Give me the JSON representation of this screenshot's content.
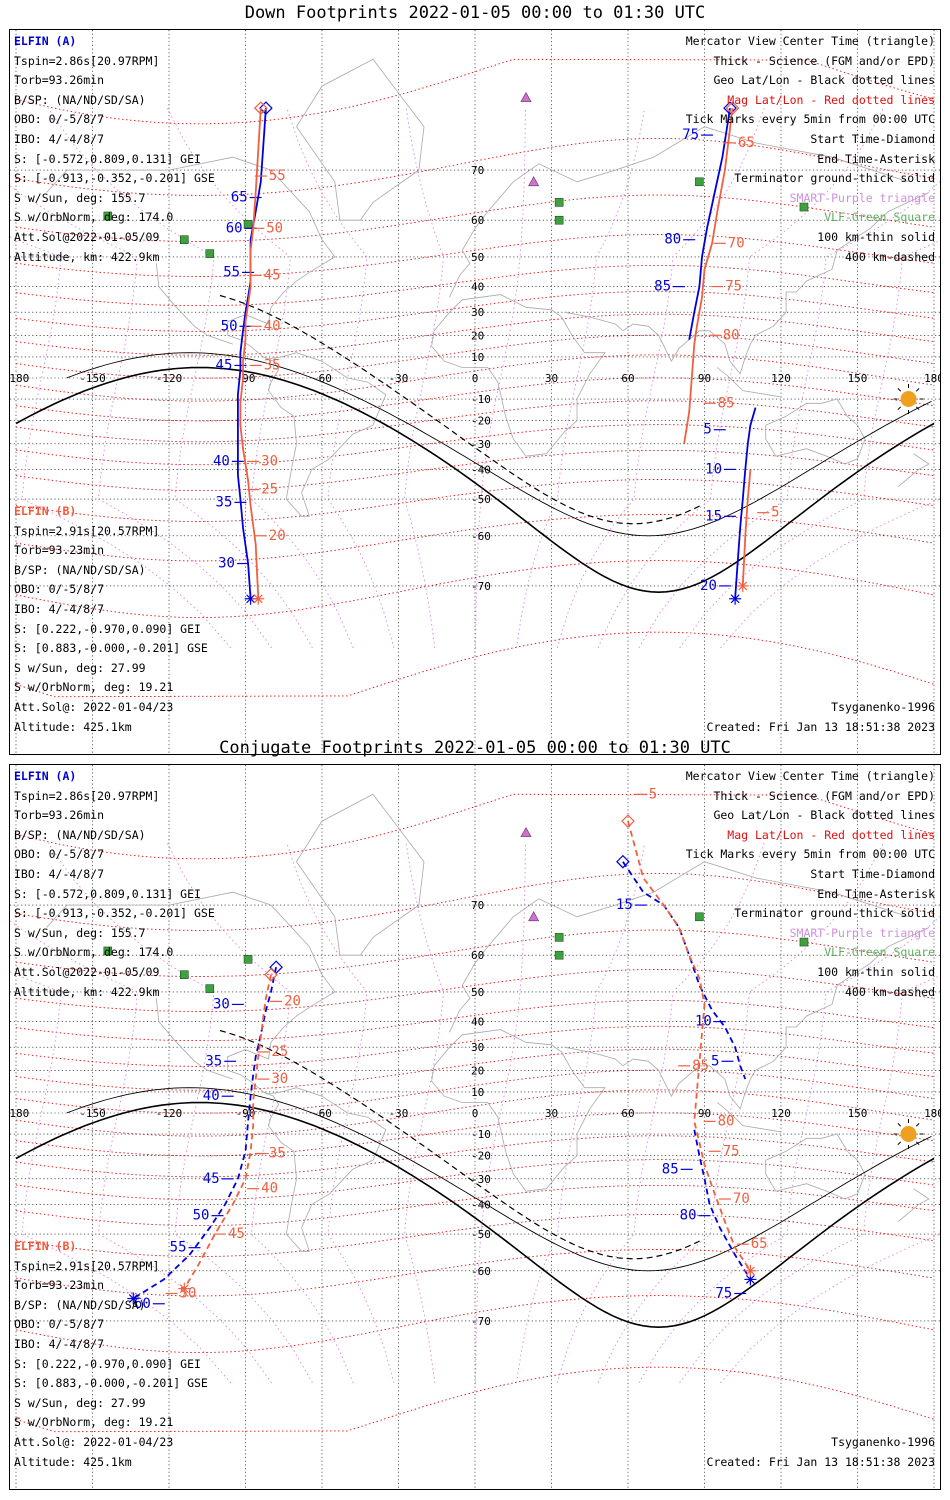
{
  "panels": [
    {
      "title": "Down Footprints 2022-01-05 00:00 to 01:30 UTC",
      "elfin_a": {
        "name": "ELFIN (A)",
        "lines": [
          "Tspin=2.86s[20.97RPM]",
          "Torb=93.26min",
          "B/SP: (NA/ND/SD/SA)",
          "OBO: 0/-5/8/7",
          "IBO: 4/-4/8/7",
          "S: [-0.572,0.809,0.131] GEI",
          "S: [-0.913,-0.352,-0.201] GSE",
          "S w/Sun, deg: 155.7",
          "S w/OrbNorm, deg: 174.0",
          "Att.Sol@2022-01-05/09",
          "Altitude, km: 422.9km"
        ]
      },
      "elfin_b": {
        "name": "ELFIN (B)",
        "lines": [
          "Tspin=2.91s[20.57RPM]",
          "Torb=93.23min",
          "B/SP: (NA/ND/SD/SA)",
          "OBO: 0/-5/8/7",
          "IBO: 4/-4/8/7",
          "S: [0.222,-0.970,0.090] GEI",
          "S: [0.883,-0.000,-0.201] GSE",
          "S w/Sun, deg: 27.99",
          "S w/OrbNorm, deg: 19.21",
          "Att.Sol@: 2022-01-04/23",
          "Altitude: 425.1km"
        ]
      },
      "legend": [
        "Mercator View Center Time (triangle)",
        "Thick - Science (FGM and/or EPD)",
        "Geo Lat/Lon - Black dotted lines",
        "Mag Lat/Lon - Red dotted lines",
        "Tick Marks every 5min from 00:00 UTC",
        "Start Time-Diamond",
        "End Time-Asterisk",
        "Terminator ground-thick solid",
        "SMART-Purple triangle",
        "VLF-Green Square",
        "100 km-thin solid",
        "400 km-dashed"
      ],
      "model": "Tsyganenko-1996",
      "created": "Created: Fri Jan 13 18:51:38 2023",
      "tracks": [
        {
          "sat": "A",
          "color": "#0000dd",
          "points": [
            [
              -82,
              78
            ],
            [
              -84,
              68
            ],
            [
              -86,
              62
            ],
            [
              -88,
              55
            ],
            [
              -88,
              48
            ],
            [
              -88,
              42
            ],
            [
              -89,
              36
            ],
            [
              -90,
              30
            ],
            [
              -91,
              22
            ],
            [
              -92,
              12
            ],
            [
              -92,
              4
            ],
            [
              -93,
              -8
            ],
            [
              -93,
              -22
            ],
            [
              -93,
              -34
            ],
            [
              -93,
              -42
            ],
            [
              -92,
              -50
            ],
            [
              -91,
              -58
            ],
            [
              -89,
              -66
            ],
            [
              -88,
              -72
            ]
          ],
          "labels": [
            {
              "t": "65",
              "lon": -86,
              "lat": 65
            },
            {
              "t": "60",
              "lon": -88,
              "lat": 58
            },
            {
              "t": "55",
              "lon": -89,
              "lat": 45
            },
            {
              "t": "50",
              "lon": -90,
              "lat": 24
            },
            {
              "t": "45",
              "lon": -92,
              "lat": 6
            },
            {
              "t": "40",
              "lon": -93,
              "lat": -37
            },
            {
              "t": "35",
              "lon": -92,
              "lat": -51
            },
            {
              "t": "30",
              "lon": -91,
              "lat": -66
            }
          ]
        },
        {
          "sat": "B",
          "color": "#f06040",
          "points": [
            [
              -84,
              78
            ],
            [
              -86,
              66
            ],
            [
              -87,
              58
            ],
            [
              -88,
              52
            ],
            [
              -88,
              46
            ],
            [
              -88,
              40
            ],
            [
              -89,
              33
            ],
            [
              -90,
              26
            ],
            [
              -90,
              18
            ],
            [
              -91,
              8
            ],
            [
              -91,
              0
            ],
            [
              -92,
              -12
            ],
            [
              -92,
              -22
            ],
            [
              -91,
              -32
            ],
            [
              -90,
              -38
            ],
            [
              -89,
              -44
            ],
            [
              -88,
              -52
            ],
            [
              -86,
              -62
            ],
            [
              -85,
              -72
            ]
          ],
          "labels": [
            {
              "t": "55",
              "lon": -84,
              "lat": 69
            },
            {
              "t": "50",
              "lon": -85,
              "lat": 58
            },
            {
              "t": "45",
              "lon": -86,
              "lat": 44
            },
            {
              "t": "40",
              "lon": -86,
              "lat": 24
            },
            {
              "t": "35",
              "lon": -86,
              "lat": 6
            },
            {
              "t": "30",
              "lon": -87,
              "lat": -37
            },
            {
              "t": "25",
              "lon": -87,
              "lat": -47
            },
            {
              "t": "20",
              "lon": -84,
              "lat": -60
            }
          ]
        },
        {
          "sat": "A",
          "color": "#0000dd",
          "points": [
            [
              100,
              78
            ],
            [
              97,
              72
            ],
            [
              94,
              66
            ],
            [
              91,
              58
            ],
            [
              89,
              50
            ],
            [
              88,
              40
            ],
            [
              86,
              30
            ],
            [
              84,
              18
            ],
            [
              110,
              -14
            ],
            [
              108,
              -22
            ],
            [
              107,
              -30
            ],
            [
              106,
              -40
            ],
            [
              105,
              -50
            ],
            [
              104,
              -58
            ],
            [
              103,
              -66
            ],
            [
              102,
              -72
            ]
          ],
          "labels": [
            {
              "t": "75",
              "lon": 91,
              "lat": 75
            },
            {
              "t": "80",
              "lon": 84,
              "lat": 55
            },
            {
              "t": "85",
              "lon": 80,
              "lat": 40
            },
            {
              "t": "5",
              "lon": 96,
              "lat": -24
            },
            {
              "t": "10",
              "lon": 100,
              "lat": -40
            },
            {
              "t": "15",
              "lon": 100,
              "lat": -55
            },
            {
              "t": "20",
              "lon": 98,
              "lat": -70
            }
          ]
        },
        {
          "sat": "B",
          "color": "#f06040",
          "points": [
            [
              101,
              78
            ],
            [
              98,
              70
            ],
            [
              95,
              62
            ],
            [
              93,
              54
            ],
            [
              90,
              46
            ],
            [
              89,
              36
            ],
            [
              87,
              24
            ],
            [
              86,
              16
            ],
            [
              85,
              0
            ],
            [
              84,
              -16
            ],
            [
              82,
              -30
            ],
            [
              108,
              -40
            ],
            [
              107,
              -50
            ],
            [
              106,
              -60
            ],
            [
              105,
              -70
            ]
          ],
          "labels": [
            {
              "t": "65",
              "lon": 100,
              "lat": 74
            },
            {
              "t": "70",
              "lon": 96,
              "lat": 54
            },
            {
              "t": "75",
              "lon": 95,
              "lat": 40
            },
            {
              "t": "80",
              "lon": 94,
              "lat": 20
            },
            {
              "t": "85",
              "lon": 92,
              "lat": -12
            },
            {
              "t": "5",
              "lon": 113,
              "lat": -54
            }
          ]
        }
      ]
    },
    {
      "title": "Conjugate Footprints 2022-01-05 00:00 to 01:30 UTC",
      "elfin_a": {
        "name": "ELFIN (A)",
        "lines": [
          "Tspin=2.86s[20.97RPM]",
          "Torb=93.26min",
          "B/SP: (NA/ND/SD/SA)",
          "OBO: 0/-5/8/7",
          "IBO: 4/-4/8/7",
          "S: [-0.572,0.809,0.131] GEI",
          "S: [-0.913,-0.352,-0.201] GSE",
          "S w/Sun, deg: 155.7",
          "S w/OrbNorm, deg: 174.0",
          "Att.Sol@2022-01-05/09",
          "Altitude, km: 422.9km"
        ]
      },
      "elfin_b": {
        "name": "ELFIN (B)",
        "lines": [
          "Tspin=2.91s[20.57RPM]",
          "Torb=93.23min",
          "B/SP: (NA/ND/SD/SA)",
          "OBO: 0/-5/8/7",
          "IBO: 4/-4/8/7",
          "S: [0.222,-0.970,0.090] GEI",
          "S: [0.883,-0.000,-0.201] GSE",
          "S w/Sun, deg: 27.99",
          "S w/OrbNorm, deg: 19.21",
          "Att.Sol@: 2022-01-04/23",
          "Altitude: 425.1km"
        ]
      },
      "legend": [
        "Mercator View Center Time (triangle)",
        "Thick - Science (FGM and/or EPD)",
        "Geo Lat/Lon - Black dotted lines",
        "Mag Lat/Lon - Red dotted lines",
        "Tick Marks every 5min from 00:00 UTC",
        "Start Time-Diamond",
        "End Time-Asterisk",
        "Terminator ground-thick solid",
        "SMART-Purple triangle",
        "VLF-Green Square",
        "100 km-thin solid",
        "400 km-dashed"
      ],
      "model": "Tsyganenko-1996",
      "created": "Created: Fri Jan 13 18:51:38 2023",
      "tracks": [
        {
          "sat": "A",
          "color": "#0000dd",
          "dashed": true,
          "points": [
            [
              -78,
              57
            ],
            [
              -80,
              50
            ],
            [
              -82,
              44
            ],
            [
              -84,
              35
            ],
            [
              -86,
              26
            ],
            [
              -87,
              18
            ],
            [
              -88,
              8
            ],
            [
              -89,
              -4
            ],
            [
              -90,
              -18
            ],
            [
              -93,
              -30
            ],
            [
              -98,
              -40
            ],
            [
              -104,
              -48
            ],
            [
              -112,
              -56
            ],
            [
              -122,
              -62
            ],
            [
              -134,
              -66
            ]
          ],
          "labels": [
            {
              "t": "30",
              "lon": -93,
              "lat": 46
            },
            {
              "t": "35",
              "lon": -96,
              "lat": 24
            },
            {
              "t": "40",
              "lon": -97,
              "lat": 8
            },
            {
              "t": "45",
              "lon": -97,
              "lat": -30
            },
            {
              "t": "50",
              "lon": -101,
              "lat": -44
            },
            {
              "t": "55",
              "lon": -110,
              "lat": -54
            },
            {
              "t": "60",
              "lon": -124,
              "lat": -67
            }
          ]
        },
        {
          "sat": "B",
          "color": "#f06040",
          "dashed": true,
          "points": [
            [
              -80,
              55
            ],
            [
              -82,
              48
            ],
            [
              -83,
              42
            ],
            [
              -84,
              34
            ],
            [
              -85,
              26
            ],
            [
              -86,
              16
            ],
            [
              -87,
              6
            ],
            [
              -87,
              -6
            ],
            [
              -88,
              -18
            ],
            [
              -90,
              -30
            ],
            [
              -95,
              -40
            ],
            [
              -102,
              -50
            ],
            [
              -108,
              -58
            ],
            [
              -114,
              -64
            ]
          ],
          "labels": [
            {
              "t": "20",
              "lon": -78,
              "lat": 47
            },
            {
              "t": "25",
              "lon": -83,
              "lat": 28
            },
            {
              "t": "30",
              "lon": -83,
              "lat": 16
            },
            {
              "t": "35",
              "lon": -84,
              "lat": -19
            },
            {
              "t": "40",
              "lon": -87,
              "lat": -34
            },
            {
              "t": "45",
              "lon": -100,
              "lat": -50
            },
            {
              "t": "50",
              "lon": -119,
              "lat": -65
            }
          ]
        },
        {
          "sat": "A",
          "color": "#0000dd",
          "dashed": true,
          "points": [
            [
              58,
              76
            ],
            [
              66,
              72
            ],
            [
              74,
              70
            ],
            [
              80,
              66
            ],
            [
              84,
              60
            ],
            [
              88,
              52
            ],
            [
              93,
              44
            ],
            [
              98,
              38
            ],
            [
              102,
              30
            ],
            [
              104,
              22
            ],
            [
              106,
              16
            ],
            [
              86,
              -8
            ],
            [
              88,
              -20
            ],
            [
              90,
              -30
            ],
            [
              92,
              -40
            ],
            [
              96,
              -48
            ],
            [
              102,
              -56
            ],
            [
              108,
              -62
            ]
          ],
          "labels": [
            {
              "t": "15",
              "lon": 65,
              "lat": 70
            },
            {
              "t": "10",
              "lon": 96,
              "lat": 40
            },
            {
              "t": "5",
              "lon": 99,
              "lat": 24
            },
            {
              "t": "85",
              "lon": 83,
              "lat": -26
            },
            {
              "t": "80",
              "lon": 90,
              "lat": -44
            },
            {
              "t": "75",
              "lon": 104,
              "lat": -65
            }
          ]
        },
        {
          "sat": "B",
          "color": "#f06040",
          "dashed": true,
          "points": [
            [
              60,
              80
            ],
            [
              66,
              74
            ],
            [
              74,
              70
            ],
            [
              80,
              66
            ],
            [
              84,
              60
            ],
            [
              88,
              54
            ],
            [
              90,
              46
            ],
            [
              86,
              -4
            ],
            [
              88,
              -14
            ],
            [
              90,
              -24
            ],
            [
              94,
              -36
            ],
            [
              98,
              -46
            ],
            [
              102,
              -54
            ],
            [
              108,
              -60
            ]
          ],
          "labels": [
            {
              "t": "5",
              "lon": 65,
              "lat": 82
            },
            {
              "t": "85",
              "lon": 82,
              "lat": 22
            },
            {
              "t": "80",
              "lon": 92,
              "lat": -4
            },
            {
              "t": "75",
              "lon": 94,
              "lat": -18
            },
            {
              "t": "70",
              "lon": 98,
              "lat": -38
            },
            {
              "t": "65",
              "lon": 105,
              "lat": -53
            }
          ]
        }
      ]
    }
  ],
  "axis": {
    "lon_ticks": [
      "-180",
      "-150",
      "-120",
      "-90",
      "-60",
      "-30",
      "0",
      "30",
      "60",
      "90",
      "120",
      "150",
      "180"
    ],
    "lat_ticks": [
      "70",
      "60",
      "50",
      "40",
      "30",
      "20",
      "10",
      "-10",
      "-20",
      "-30",
      "-40",
      "-50",
      "-60",
      "-70"
    ]
  },
  "colors": {
    "elfin_a": "#0000cc",
    "elfin_b": "#f05a3a",
    "mag_grid": "#e01010",
    "geo_grid": "#000000",
    "smart": "#d090e0",
    "vlf": "#60b060",
    "sun": "#f0a020"
  }
}
